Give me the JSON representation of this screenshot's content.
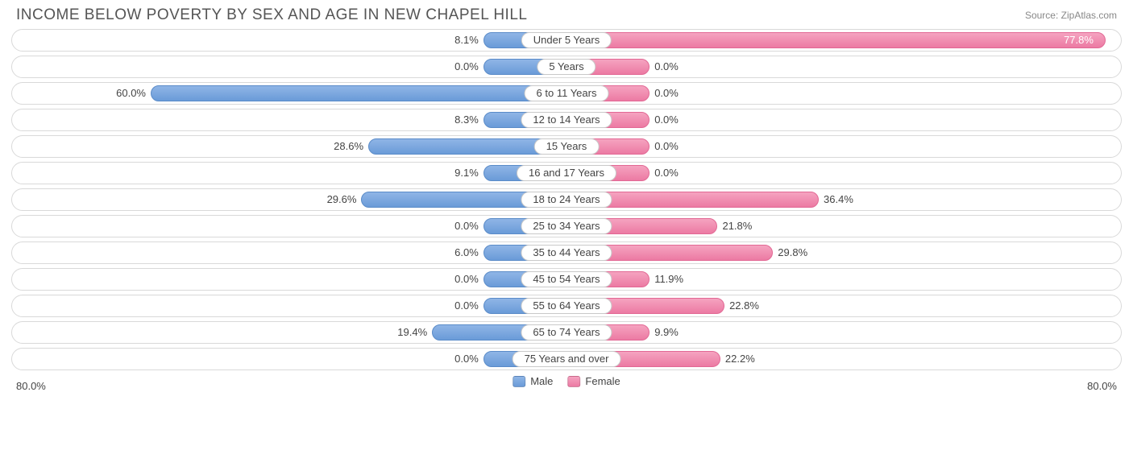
{
  "title": "INCOME BELOW POVERTY BY SEX AND AGE IN NEW CHAPEL HILL",
  "source": "Source: ZipAtlas.com",
  "chart": {
    "type": "diverging-bar",
    "axis_max_pct": 80.0,
    "axis_label_left": "80.0%",
    "axis_label_right": "80.0%",
    "min_bar_pct": 12.0,
    "center_label_bg": "#ffffff",
    "center_label_border": "#c9c9c9",
    "track_border": "#d9d9d9",
    "track_bg": "#ffffff",
    "male_fill_top": "#8fb5e6",
    "male_fill_bottom": "#6a9bd8",
    "male_border": "#5a8bc8",
    "female_fill_top": "#f5a3c0",
    "female_fill_bottom": "#ec7aa3",
    "female_border": "#e26894",
    "label_fontsize": 13,
    "title_fontsize": 19,
    "title_color": "#555555",
    "text_color": "#444444",
    "rows": [
      {
        "label": "Under 5 Years",
        "male": 8.1,
        "female": 77.8
      },
      {
        "label": "5 Years",
        "male": 0.0,
        "female": 0.0
      },
      {
        "label": "6 to 11 Years",
        "male": 60.0,
        "female": 0.0
      },
      {
        "label": "12 to 14 Years",
        "male": 8.3,
        "female": 0.0
      },
      {
        "label": "15 Years",
        "male": 28.6,
        "female": 0.0
      },
      {
        "label": "16 and 17 Years",
        "male": 9.1,
        "female": 0.0
      },
      {
        "label": "18 to 24 Years",
        "male": 29.6,
        "female": 36.4
      },
      {
        "label": "25 to 34 Years",
        "male": 0.0,
        "female": 21.8
      },
      {
        "label": "35 to 44 Years",
        "male": 6.0,
        "female": 29.8
      },
      {
        "label": "45 to 54 Years",
        "male": 0.0,
        "female": 11.9
      },
      {
        "label": "55 to 64 Years",
        "male": 0.0,
        "female": 22.8
      },
      {
        "label": "65 to 74 Years",
        "male": 19.4,
        "female": 9.9
      },
      {
        "label": "75 Years and over",
        "male": 0.0,
        "female": 22.2
      }
    ],
    "legend": {
      "male_label": "Male",
      "female_label": "Female"
    }
  }
}
